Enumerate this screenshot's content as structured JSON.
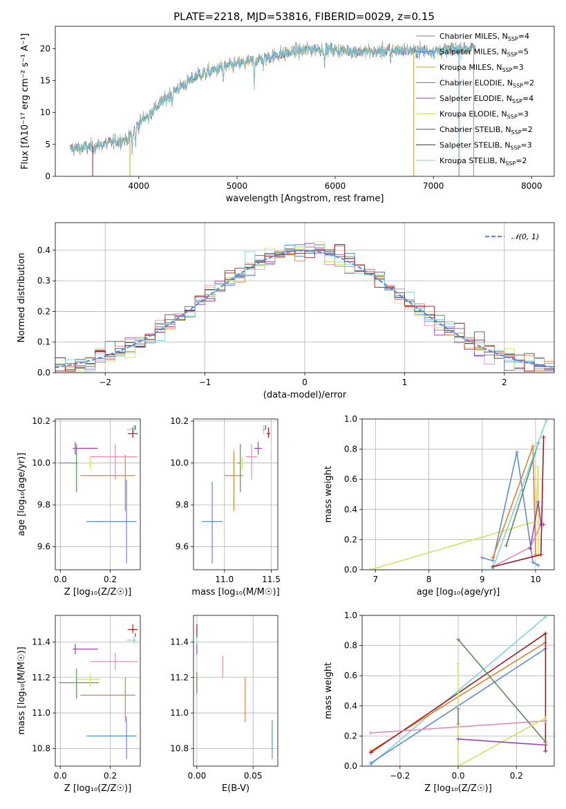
{
  "figure_title": "PLATE=2218, MJD=53816, FIBERID=0029, z=0.15",
  "colors": {
    "Chabrier MILES": "#808080",
    "Salpeter MILES": "#5b8bd8",
    "Kroupa MILES": "#c8a020",
    "Chabrier ELODIE": "#5a8a5a",
    "Salpeter ELODIE": "#9b3fb5",
    "Kroupa ELODIE": "#d4e060",
    "Chabrier STELIB": "#505050",
    "Salpeter STELIB": "#a01818",
    "Kroupa STELIB": "#7dd3dc",
    "orange": "#e87d2a",
    "pink": "#e58ab8",
    "normal_curve": "#5b8bd8"
  },
  "chart_data": [
    {
      "id": "spectrum",
      "type": "line",
      "title": "",
      "xlabel": "wavelength [Angstrom, rest frame]",
      "ylabel": "Flux [fλ10⁻¹⁷ erg cm⁻² s⁻¹ A⁻¹]",
      "xlim": [
        3150,
        8230
      ],
      "ylim": [
        0,
        23.5
      ],
      "xticks": [
        4000,
        5000,
        6000,
        7000,
        8000
      ],
      "yticks": [
        0,
        5,
        10,
        15,
        20
      ],
      "legend_position": "top-right",
      "grid": false,
      "series": [
        {
          "name": "Chabrier MILES, N",
          "sub": "SSP",
          "tail": "=4"
        },
        {
          "name": "Salpeter MILES, N",
          "sub": "SSP",
          "tail": "=5"
        },
        {
          "name": "Kroupa MILES, N",
          "sub": "SSP",
          "tail": "=3"
        },
        {
          "name": "Chabrier ELODIE, N",
          "sub": "SSP",
          "tail": "=2"
        },
        {
          "name": "Salpeter ELODIE, N",
          "sub": "SSP",
          "tail": "=4"
        },
        {
          "name": "Kroupa ELODIE, N",
          "sub": "SSP",
          "tail": "=3"
        },
        {
          "name": "Chabrier STELIB, N",
          "sub": "SSP",
          "tail": "=2"
        },
        {
          "name": "Salpeter STELIB, N",
          "sub": "SSP",
          "tail": "=3"
        },
        {
          "name": "Kroupa STELIB, N",
          "sub": "SSP",
          "tail": "=2"
        }
      ],
      "continuum": {
        "wavelength": [
          3300,
          3500,
          3700,
          3900,
          4000,
          4200,
          4400,
          4600,
          4800,
          5000,
          5200,
          5400,
          5600,
          5800,
          6000,
          6200,
          6400,
          6600,
          6800,
          7000,
          7200,
          7400
        ],
        "flux": [
          4.3,
          4.6,
          5.2,
          6.0,
          8.3,
          11.2,
          13.8,
          15.8,
          16.8,
          17.6,
          18.2,
          19.0,
          19.6,
          20.0,
          19.8,
          19.6,
          19.5,
          19.8,
          19.7,
          19.6,
          19.9,
          20.1
        ]
      }
    },
    {
      "id": "residuals",
      "type": "histogram",
      "xlabel": "(data-model)/error",
      "ylabel": "Normed distribution",
      "xlim": [
        -2.5,
        2.5
      ],
      "ylim": [
        0,
        0.49
      ],
      "xticks": [
        -2,
        -1,
        0,
        1,
        2
      ],
      "yticks": [
        0.0,
        0.1,
        0.2,
        0.3,
        0.4
      ],
      "grid": true,
      "legend": "𝒩(0, 1)",
      "legend_position": "top-right",
      "bin_width": 0.1
    },
    {
      "id": "age-vs-Z",
      "type": "scatter",
      "xlabel": "Z [log₁₀(Z/Z☉)]",
      "ylabel": "age  [log₁₀(age/yr)]",
      "xlim": [
        -0.02,
        0.32
      ],
      "ylim": [
        9.49,
        10.21
      ],
      "xticks": [
        0.0,
        0.2
      ],
      "yticks": [
        9.6,
        9.8,
        10.0,
        10.2
      ],
      "points": [
        {
          "color": "Salpeter MILES",
          "x": 0.265,
          "y": 9.72,
          "xerr": [
            0.16,
            0.04
          ],
          "yerr": [
            0.2,
            0.2
          ]
        },
        {
          "color": "orange",
          "x": 0.26,
          "y": 9.94,
          "xerr": [
            0.18,
            0.04
          ],
          "yerr": [
            0.17,
            0.1
          ]
        },
        {
          "color": "Chabrier ELODIE",
          "x": 0.065,
          "y": 10.0,
          "xerr": [
            0.07,
            0.09
          ],
          "yerr": [
            0.14,
            0.09
          ]
        },
        {
          "color": "Kroupa ELODIE",
          "x": 0.12,
          "y": 10.0,
          "xerr": [
            0.05,
            0.04
          ],
          "yerr": [
            0.03,
            0.03
          ]
        },
        {
          "color": "Salpeter ELODIE",
          "x": 0.06,
          "y": 10.07,
          "xerr": [
            0.01,
            0.09
          ],
          "yerr": [
            0.03,
            0.03
          ]
        },
        {
          "color": "pink",
          "x": 0.22,
          "y": 10.03,
          "xerr": [
            0.1,
            0.09
          ],
          "yerr": [
            0.11,
            0.06
          ]
        },
        {
          "color": "Salpeter STELIB",
          "x": 0.29,
          "y": 10.14,
          "xerr": [
            0.02,
            0.02
          ],
          "yerr": [
            0.02,
            0.03
          ]
        },
        {
          "color": "Kroupa STELIB",
          "x": 0.295,
          "y": 10.16,
          "xerr": [
            0.03,
            0.01
          ],
          "yerr": [
            0.02,
            0.02
          ]
        },
        {
          "color": "Chabrier STELIB",
          "x": 0.3,
          "y": 10.17,
          "xerr": [
            0.0,
            0.0
          ],
          "yerr": [
            0.01,
            0.01
          ]
        }
      ]
    },
    {
      "id": "age-vs-mass",
      "type": "scatter",
      "xlabel": "mass [log₁₀(M/M☉)]",
      "ylabel": "",
      "xlim": [
        10.67,
        11.57
      ],
      "ylim": [
        9.49,
        10.21
      ],
      "xticks": [
        11.0,
        11.5
      ],
      "yticks": [
        9.6,
        9.8,
        10.0,
        10.2
      ],
      "points": [
        {
          "color": "Salpeter MILES",
          "x": 10.87,
          "y": 9.72,
          "xerr": [
            0.11,
            0.11
          ],
          "yerr": [
            0.2,
            0.19
          ]
        },
        {
          "color": "orange",
          "x": 11.1,
          "y": 9.94,
          "xerr": [
            0.1,
            0.1
          ],
          "yerr": [
            0.17,
            0.12
          ]
        },
        {
          "color": "Chabrier ELODIE",
          "x": 11.17,
          "y": 10.0,
          "xerr": [
            0.03,
            0.03
          ],
          "yerr": [
            0.14,
            0.09
          ]
        },
        {
          "color": "Kroupa ELODIE",
          "x": 11.19,
          "y": 10.0,
          "xerr": [
            0.02,
            0.02
          ],
          "yerr": [
            0.03,
            0.03
          ]
        },
        {
          "color": "Salpeter ELODIE",
          "x": 11.36,
          "y": 10.07,
          "xerr": [
            0.04,
            0.04
          ],
          "yerr": [
            0.03,
            0.03
          ]
        },
        {
          "color": "pink",
          "x": 11.29,
          "y": 10.03,
          "xerr": [
            0.06,
            0.06
          ],
          "yerr": [
            0.11,
            0.06
          ]
        },
        {
          "color": "Salpeter STELIB",
          "x": 11.47,
          "y": 10.14,
          "xerr": [
            0.02,
            0.02
          ],
          "yerr": [
            0.02,
            0.03
          ]
        },
        {
          "color": "Kroupa STELIB",
          "x": 11.42,
          "y": 10.16,
          "xerr": [
            0.02,
            0.02
          ],
          "yerr": [
            0.02,
            0.02
          ]
        },
        {
          "color": "Chabrier STELIB",
          "x": 11.44,
          "y": 10.17,
          "xerr": [
            0.0,
            0.0
          ],
          "yerr": [
            0.01,
            0.01
          ]
        }
      ]
    },
    {
      "id": "mass-weight-vs-age",
      "type": "line",
      "xlabel": "age  [log₁₀(age/yr)]",
      "ylabel": "mass weight",
      "xlim": [
        6.75,
        10.35
      ],
      "ylim": [
        0.0,
        1.0
      ],
      "xticks": [
        7,
        8,
        9,
        10
      ],
      "yticks": [
        0.0,
        0.2,
        0.4,
        0.6,
        0.8,
        1.0
      ],
      "grid": true,
      "series": [
        {
          "color": "Kroupa ELODIE",
          "x": [
            6.9,
            10.0,
            10.05,
            10.05
          ],
          "y": [
            0.0,
            0.32,
            0.68,
            0.1
          ]
        },
        {
          "color": "Salpeter MILES",
          "x": [
            9.0,
            9.2,
            9.65,
            9.95,
            10.05
          ],
          "y": [
            0.08,
            0.06,
            0.78,
            0.05,
            0.03
          ]
        },
        {
          "color": "orange",
          "x": [
            9.2,
            9.95,
            10.0
          ],
          "y": [
            0.08,
            0.82,
            0.1
          ]
        },
        {
          "color": "pink",
          "x": [
            9.2,
            9.9,
            10.1
          ],
          "y": [
            0.02,
            0.15,
            0.3
          ]
        },
        {
          "color": "Chabrier ELODIE",
          "x": [
            9.45,
            10.05
          ],
          "y": [
            0.16,
            0.84
          ]
        },
        {
          "color": "Salpeter ELODIE",
          "x": [
            9.9,
            10.05,
            10.1,
            10.15
          ],
          "y": [
            0.14,
            0.45,
            0.3,
            0.3
          ]
        },
        {
          "color": "Kroupa STELIB",
          "x": [
            9.2,
            10.2
          ],
          "y": [
            0.01,
            0.99
          ]
        },
        {
          "color": "Salpeter STELIB",
          "x": [
            9.2,
            10.1,
            10.15
          ],
          "y": [
            0.02,
            0.1,
            0.88
          ]
        }
      ]
    },
    {
      "id": "mass-vs-Z",
      "type": "scatter",
      "xlabel": "Z [log₁₀(Z/Z☉)]",
      "ylabel": "mass [log₁₀(M/M☉)]",
      "xlim": [
        -0.02,
        0.32
      ],
      "ylim": [
        10.7,
        11.55
      ],
      "xticks": [
        0.0,
        0.2
      ],
      "yticks": [
        10.8,
        11.0,
        11.2,
        11.4
      ],
      "points": [
        {
          "color": "Salpeter MILES",
          "x": 0.265,
          "y": 10.87,
          "xerr": [
            0.16,
            0.04
          ],
          "yerr": [
            0.13,
            0.11
          ]
        },
        {
          "color": "orange",
          "x": 0.26,
          "y": 11.1,
          "xerr": [
            0.18,
            0.04
          ],
          "yerr": [
            0.15,
            0.1
          ]
        },
        {
          "color": "Chabrier ELODIE",
          "x": 0.065,
          "y": 11.17,
          "xerr": [
            0.07,
            0.09
          ],
          "yerr": [
            0.09,
            0.08
          ]
        },
        {
          "color": "Kroupa ELODIE",
          "x": 0.12,
          "y": 11.19,
          "xerr": [
            0.05,
            0.04
          ],
          "yerr": [
            0.04,
            0.03
          ]
        },
        {
          "color": "Salpeter ELODIE",
          "x": 0.06,
          "y": 11.36,
          "xerr": [
            0.01,
            0.09
          ],
          "yerr": [
            0.03,
            0.03
          ]
        },
        {
          "color": "pink",
          "x": 0.22,
          "y": 11.29,
          "xerr": [
            0.1,
            0.09
          ],
          "yerr": [
            0.05,
            0.05
          ]
        },
        {
          "color": "Salpeter STELIB",
          "x": 0.29,
          "y": 11.47,
          "xerr": [
            0.02,
            0.02
          ],
          "yerr": [
            0.02,
            0.03
          ]
        },
        {
          "color": "Kroupa STELIB",
          "x": 0.295,
          "y": 11.41,
          "xerr": [
            0.03,
            0.01
          ],
          "yerr": [
            0.02,
            0.02
          ]
        },
        {
          "color": "Chabrier STELIB",
          "x": 0.3,
          "y": 11.44,
          "xerr": [
            0.0,
            0.0
          ],
          "yerr": [
            0.01,
            0.01
          ]
        }
      ]
    },
    {
      "id": "mass-vs-EBV",
      "type": "scatter",
      "xlabel": "E(B-V)",
      "ylabel": "",
      "xlim": [
        -0.003,
        0.072
      ],
      "ylim": [
        10.7,
        11.55
      ],
      "xticks": [
        0.0,
        0.05
      ],
      "yticks": [
        10.8,
        11.0,
        11.2,
        11.4
      ],
      "points": [
        {
          "color": "Salpeter MILES",
          "x": 0.067,
          "y": 10.85,
          "xerr": [
            0,
            0
          ],
          "yerr": [
            0.11,
            0.11
          ]
        },
        {
          "color": "orange",
          "x": 0.043,
          "y": 11.1,
          "xerr": [
            0,
            0
          ],
          "yerr": [
            0.15,
            0.1
          ]
        },
        {
          "color": "pink",
          "x": 0.023,
          "y": 11.26,
          "xerr": [
            0,
            0
          ],
          "yerr": [
            0.06,
            0.06
          ]
        },
        {
          "color": "Kroupa ELODIE",
          "x": 0.0,
          "y": 11.18,
          "xerr": [
            0,
            0
          ],
          "yerr": [
            0.06,
            0.06
          ]
        },
        {
          "color": "Chabrier ELODIE",
          "x": 0.0,
          "y": 11.17,
          "xerr": [
            0,
            0
          ],
          "yerr": [
            0.06,
            0.06
          ]
        },
        {
          "color": "Salpeter ELODIE",
          "x": 0.0,
          "y": 11.36,
          "xerr": [
            0,
            0
          ],
          "yerr": [
            0.03,
            0.03
          ]
        },
        {
          "color": "Salpeter STELIB",
          "x": 0.0,
          "y": 11.46,
          "xerr": [
            0,
            0
          ],
          "yerr": [
            0.04,
            0.04
          ]
        },
        {
          "color": "Kroupa STELIB",
          "x": 0.0,
          "y": 11.41,
          "xerr": [
            0,
            0
          ],
          "yerr": [
            0.02,
            0.02
          ]
        }
      ]
    },
    {
      "id": "mass-weight-vs-Z",
      "type": "line",
      "xlabel": "Z [log₁₀(Z/Z☉)]",
      "ylabel": "mass weight",
      "xlim": [
        -0.33,
        0.33
      ],
      "ylim": [
        0.0,
        1.0
      ],
      "xticks": [
        -0.2,
        0.0,
        0.2
      ],
      "yticks": [
        0.0,
        0.2,
        0.4,
        0.6,
        0.8,
        1.0
      ],
      "grid": true,
      "series": [
        {
          "color": "Kroupa STELIB",
          "x": [
            -0.3,
            0.3
          ],
          "y": [
            0.01,
            0.99
          ]
        },
        {
          "color": "Salpeter MILES",
          "x": [
            -0.3,
            0.3
          ],
          "y": [
            0.02,
            0.78
          ]
        },
        {
          "color": "orange",
          "x": [
            -0.3,
            0.3
          ],
          "y": [
            0.1,
            0.82
          ]
        },
        {
          "color": "Salpeter STELIB",
          "x": [
            -0.3,
            0.3,
            0.3
          ],
          "y": [
            0.09,
            0.88,
            0.1
          ]
        },
        {
          "color": "pink",
          "x": [
            -0.3,
            0.3
          ],
          "y": [
            0.22,
            0.3
          ]
        },
        {
          "color": "Chabrier ELODIE",
          "x": [
            0.0,
            0.3
          ],
          "y": [
            0.84,
            0.16
          ]
        },
        {
          "color": "Kroupa ELODIE",
          "x": [
            0.0,
            0.0,
            0.3
          ],
          "y": [
            0.68,
            0.0,
            0.32
          ]
        },
        {
          "color": "Salpeter ELODIE",
          "x": [
            0.0,
            0.3
          ],
          "y": [
            0.18,
            0.14
          ]
        },
        {
          "color": "Chabrier MILES",
          "x": [
            0.0,
            0.0
          ],
          "y": [
            0.38,
            0.28
          ]
        }
      ]
    }
  ]
}
